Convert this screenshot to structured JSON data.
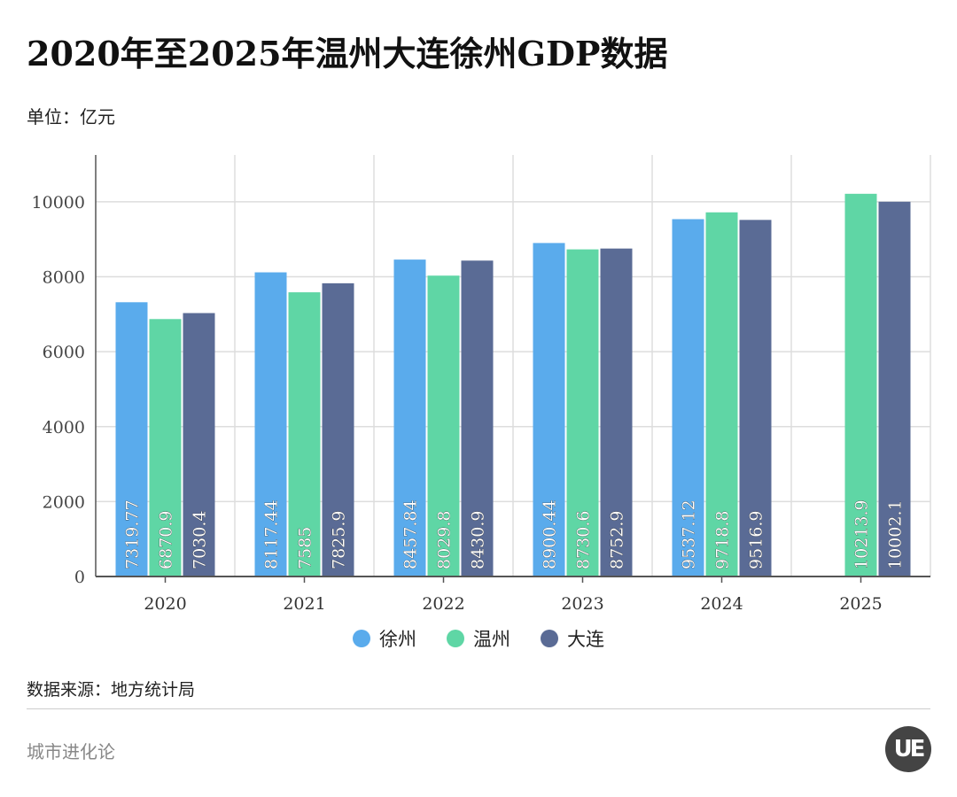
{
  "title": "2020年至2025年温州大连徐州GDP数据",
  "unit": "单位：亿元",
  "source": "数据来源：地方统计局",
  "footer": "城市进化论",
  "logo_text": "UE",
  "chart_data": {
    "type": "bar",
    "categories": [
      "2020",
      "2021",
      "2022",
      "2023",
      "2024",
      "2025"
    ],
    "series": [
      {
        "name": "徐州",
        "color": "#5aabec",
        "values": [
          7319.77,
          8117.44,
          8457.84,
          8900.44,
          9537.12,
          null
        ],
        "labels": [
          "7319.77",
          "8117.44",
          "8457.84",
          "8900.44",
          "9537.12",
          null
        ]
      },
      {
        "name": "温州",
        "color": "#5fd6a5",
        "values": [
          6870.9,
          7585,
          8029.8,
          8730.6,
          9718.8,
          10213.9
        ],
        "labels": [
          "6870.9",
          "7585",
          "8029.8",
          "8730.6",
          "9718.8",
          "10213.9"
        ]
      },
      {
        "name": "大连",
        "color": "#5a6b95",
        "values": [
          7030.4,
          7825.9,
          8430.9,
          8752.9,
          9516.9,
          10002.1
        ],
        "labels": [
          "7030.4",
          "7825.9",
          "8430.9",
          "8752.9",
          "9516.9",
          "10002.1"
        ]
      }
    ],
    "yticks": [
      "0",
      "2000",
      "4000",
      "6000",
      "8000",
      "10000"
    ],
    "ylim": [
      0,
      11250
    ],
    "grid": true,
    "legend_position": "bottom"
  }
}
